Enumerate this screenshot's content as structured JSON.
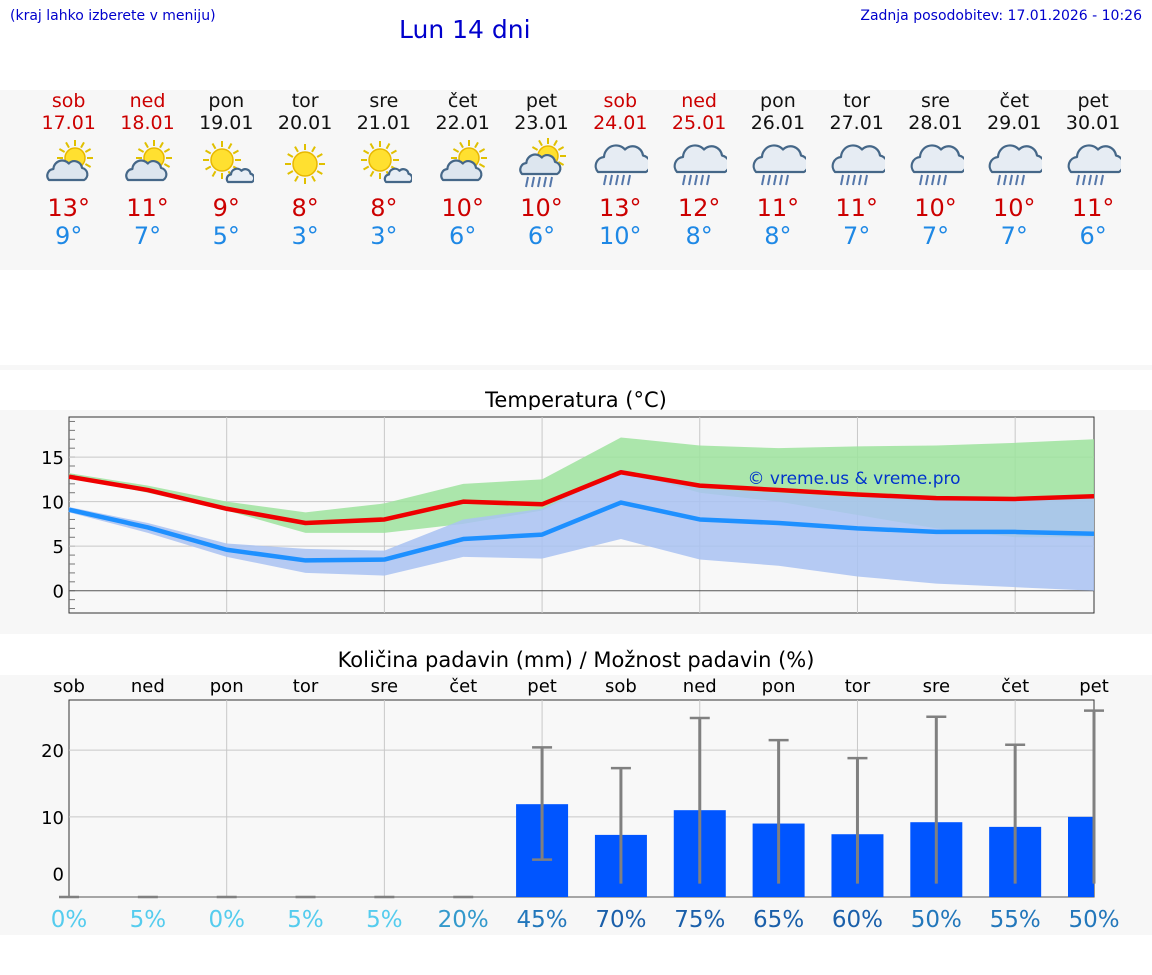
{
  "header": {
    "left_note": "(kraj lahko izberete v meniju)",
    "title": "Lun 14 dni",
    "updated": "Zadnja posodobitev: 17.01.2026 - 10:26"
  },
  "days": [
    {
      "name": "sob",
      "date": "17.01",
      "weekend": true,
      "icon": "partly-sunny-icon",
      "tmax": "13°",
      "tmin": "9°"
    },
    {
      "name": "ned",
      "date": "18.01",
      "weekend": true,
      "icon": "partly-sunny-icon",
      "tmax": "11°",
      "tmin": "7°"
    },
    {
      "name": "pon",
      "date": "19.01",
      "weekend": false,
      "icon": "sun-cloud-small-icon",
      "tmax": "9°",
      "tmin": "5°"
    },
    {
      "name": "tor",
      "date": "20.01",
      "weekend": false,
      "icon": "sun-icon",
      "tmax": "8°",
      "tmin": "3°"
    },
    {
      "name": "sre",
      "date": "21.01",
      "weekend": false,
      "icon": "sun-cloud-small-icon",
      "tmax": "8°",
      "tmin": "3°"
    },
    {
      "name": "čet",
      "date": "22.01",
      "weekend": false,
      "icon": "partly-sunny-icon",
      "tmax": "10°",
      "tmin": "6°"
    },
    {
      "name": "pet",
      "date": "23.01",
      "weekend": false,
      "icon": "sun-rain-icon",
      "tmax": "10°",
      "tmin": "6°"
    },
    {
      "name": "sob",
      "date": "24.01",
      "weekend": true,
      "icon": "rain-cloud-icon",
      "tmax": "13°",
      "tmin": "10°"
    },
    {
      "name": "ned",
      "date": "25.01",
      "weekend": true,
      "icon": "rain-cloud-icon",
      "tmax": "12°",
      "tmin": "8°"
    },
    {
      "name": "pon",
      "date": "26.01",
      "weekend": false,
      "icon": "rain-cloud-icon",
      "tmax": "11°",
      "tmin": "8°"
    },
    {
      "name": "tor",
      "date": "27.01",
      "weekend": false,
      "icon": "rain-cloud-icon",
      "tmax": "11°",
      "tmin": "7°"
    },
    {
      "name": "sre",
      "date": "28.01",
      "weekend": false,
      "icon": "rain-cloud-icon",
      "tmax": "10°",
      "tmin": "7°"
    },
    {
      "name": "čet",
      "date": "29.01",
      "weekend": false,
      "icon": "rain-cloud-icon",
      "tmax": "10°",
      "tmin": "7°"
    },
    {
      "name": "pet",
      "date": "30.01",
      "weekend": false,
      "icon": "rain-cloud-icon",
      "tmax": "11°",
      "tmin": "6°"
    }
  ],
  "colors": {
    "max_line": "#ee0000",
    "min_line": "#1e90ff",
    "max_band": "#9de39d",
    "min_band": "#a9c2f2",
    "bar": "#0055ff",
    "whisker": "#808080"
  },
  "chart_data": [
    {
      "type": "line",
      "title": "Temperatura (°C)",
      "watermark": "© vreme.us & vreme.pro",
      "ylim": [
        -2.5,
        19.5
      ],
      "yticks": [
        0,
        5,
        10,
        15
      ],
      "x": [
        0,
        1,
        2,
        3,
        4,
        5,
        6,
        7,
        8,
        9,
        10,
        11,
        12,
        13
      ],
      "series": [
        {
          "name": "max",
          "values": [
            12.8,
            11.3,
            9.2,
            7.6,
            8.0,
            10.0,
            9.7,
            13.3,
            11.8,
            11.3,
            10.8,
            10.4,
            10.3,
            10.6
          ],
          "band_low": [
            12.8,
            11.0,
            9.0,
            6.5,
            6.5,
            7.5,
            9.0,
            13.5,
            11.0,
            10.0,
            8.5,
            7.0,
            6.0,
            6.0
          ],
          "band_high": [
            13.2,
            11.8,
            10.0,
            8.8,
            9.8,
            12.0,
            12.5,
            17.2,
            16.3,
            16.0,
            16.2,
            16.3,
            16.6,
            17.0
          ]
        },
        {
          "name": "min",
          "values": [
            9.1,
            7.1,
            4.6,
            3.4,
            3.5,
            5.8,
            6.3,
            9.9,
            8.0,
            7.6,
            7.0,
            6.6,
            6.6,
            6.4
          ],
          "band_low": [
            8.8,
            6.5,
            3.8,
            2.0,
            1.7,
            3.8,
            3.6,
            5.8,
            3.5,
            2.8,
            1.6,
            0.8,
            0.4,
            0.0
          ],
          "band_high": [
            9.4,
            7.6,
            5.3,
            4.7,
            4.5,
            8.0,
            9.2,
            13.6,
            11.5,
            11.0,
            10.5,
            10.3,
            10.5,
            10.7
          ]
        }
      ]
    },
    {
      "type": "bar",
      "title": "Količina padavin (mm) / Možnost padavin (%)",
      "ylim": [
        -2,
        27.5
      ],
      "yticks": [
        0,
        10,
        20
      ],
      "categories": [
        "sob",
        "ned",
        "pon",
        "tor",
        "sre",
        "čet",
        "pet",
        "sob",
        "ned",
        "pon",
        "tor",
        "sre",
        "čet",
        "pet"
      ],
      "values": [
        0,
        0,
        0,
        0,
        0,
        0,
        11.9,
        7.3,
        11.0,
        9.0,
        7.4,
        9.2,
        8.5,
        10.0
      ],
      "err_low": [
        0,
        0,
        0,
        0,
        0,
        0,
        3.6,
        0,
        0,
        0,
        0,
        0,
        0,
        0
      ],
      "err_high": [
        0,
        0,
        0,
        0,
        0,
        0,
        20.4,
        17.3,
        24.8,
        21.5,
        18.8,
        25.0,
        20.8,
        25.9
      ],
      "probability": [
        "0%",
        "5%",
        "0%",
        "5%",
        "5%",
        "20%",
        "45%",
        "70%",
        "75%",
        "65%",
        "60%",
        "50%",
        "55%",
        "50%"
      ],
      "probability_values": [
        0,
        5,
        0,
        5,
        5,
        20,
        45,
        70,
        75,
        65,
        60,
        50,
        55,
        50
      ]
    }
  ]
}
